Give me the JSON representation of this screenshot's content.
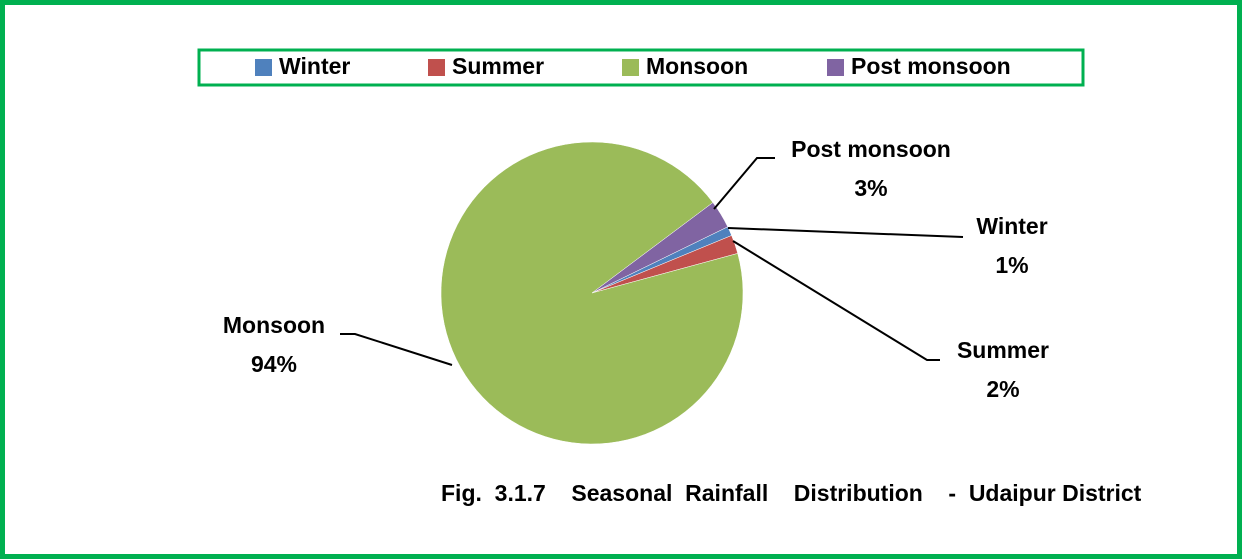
{
  "chart_data": {
    "type": "pie",
    "title": "Fig.  3.1.7    Seasonal  Rainfall    Distribution    -  Udaipur District",
    "categories": [
      "Winter",
      "Summer",
      "Monsoon",
      "Post monsoon"
    ],
    "values": [
      1,
      2,
      94,
      3
    ],
    "value_labels": [
      "1%",
      "2%",
      "94%",
      "3%"
    ],
    "colors": [
      "#4f81bd",
      "#c0504d",
      "#9bbb59",
      "#8064a2"
    ],
    "legend": "top"
  }
}
